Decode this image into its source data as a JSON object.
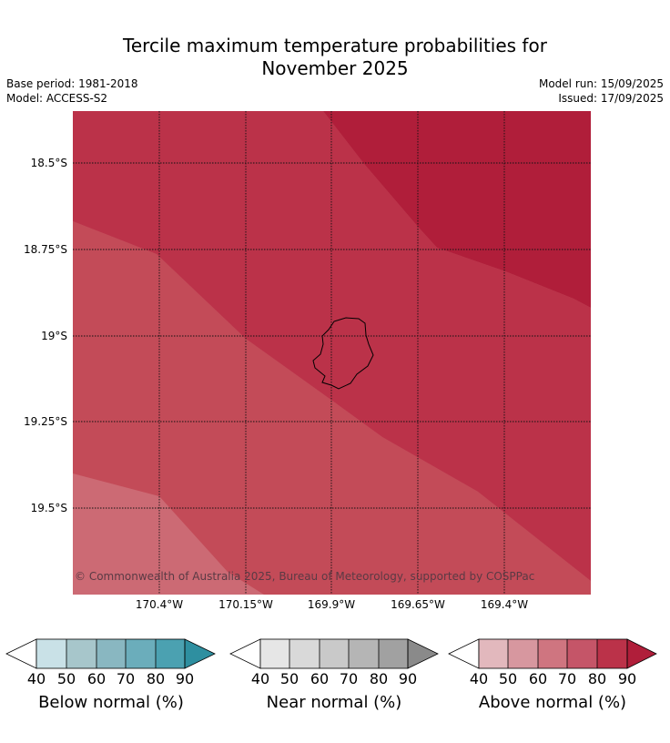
{
  "header": {
    "title_line1": "Tercile maximum temperature probabilities for",
    "title_line2": "November 2025",
    "base_period": "Base period: 1981-2018",
    "model": "Model: ACCESS-S2",
    "model_run": "Model run: 15/09/2025",
    "issued": "Issued: 17/09/2025"
  },
  "map": {
    "lat_labels": [
      "18.5°S",
      "18.75°S",
      "19°S",
      "19.25°S",
      "19.5°S"
    ],
    "lon_labels": [
      "170.4°W",
      "170.15°W",
      "169.9°W",
      "169.65°W",
      "169.4°W"
    ],
    "copyright": "© Commonwealth of Australia 2025, Bureau of Meteorology, supported by COSPPac",
    "region_colors": {
      "above_90": "#b01e3a",
      "above_80": "#bb3249",
      "above_70": "#c34b58",
      "above_60": "#cc6a74"
    }
  },
  "colorbars": [
    {
      "label": "Below normal (%)",
      "ticks": [
        "40",
        "50",
        "60",
        "70",
        "80",
        "90"
      ],
      "colors": [
        "#c9e1e7",
        "#a7c6cb",
        "#89b7c1",
        "#6badbb",
        "#4ba1b1",
        "#2e8fa0"
      ]
    },
    {
      "label": "Near normal (%)",
      "ticks": [
        "40",
        "50",
        "60",
        "70",
        "80",
        "90"
      ],
      "colors": [
        "#e6e6e6",
        "#d9d9d9",
        "#c9c9c9",
        "#b5b5b5",
        "#a1a1a1",
        "#8a8a8a"
      ]
    },
    {
      "label": "Above normal (%)",
      "ticks": [
        "40",
        "50",
        "60",
        "70",
        "80",
        "90"
      ],
      "colors": [
        "#e2b8bd",
        "#d7979f",
        "#cf7580",
        "#c55568",
        "#bb3249",
        "#b01e3a"
      ]
    }
  ]
}
